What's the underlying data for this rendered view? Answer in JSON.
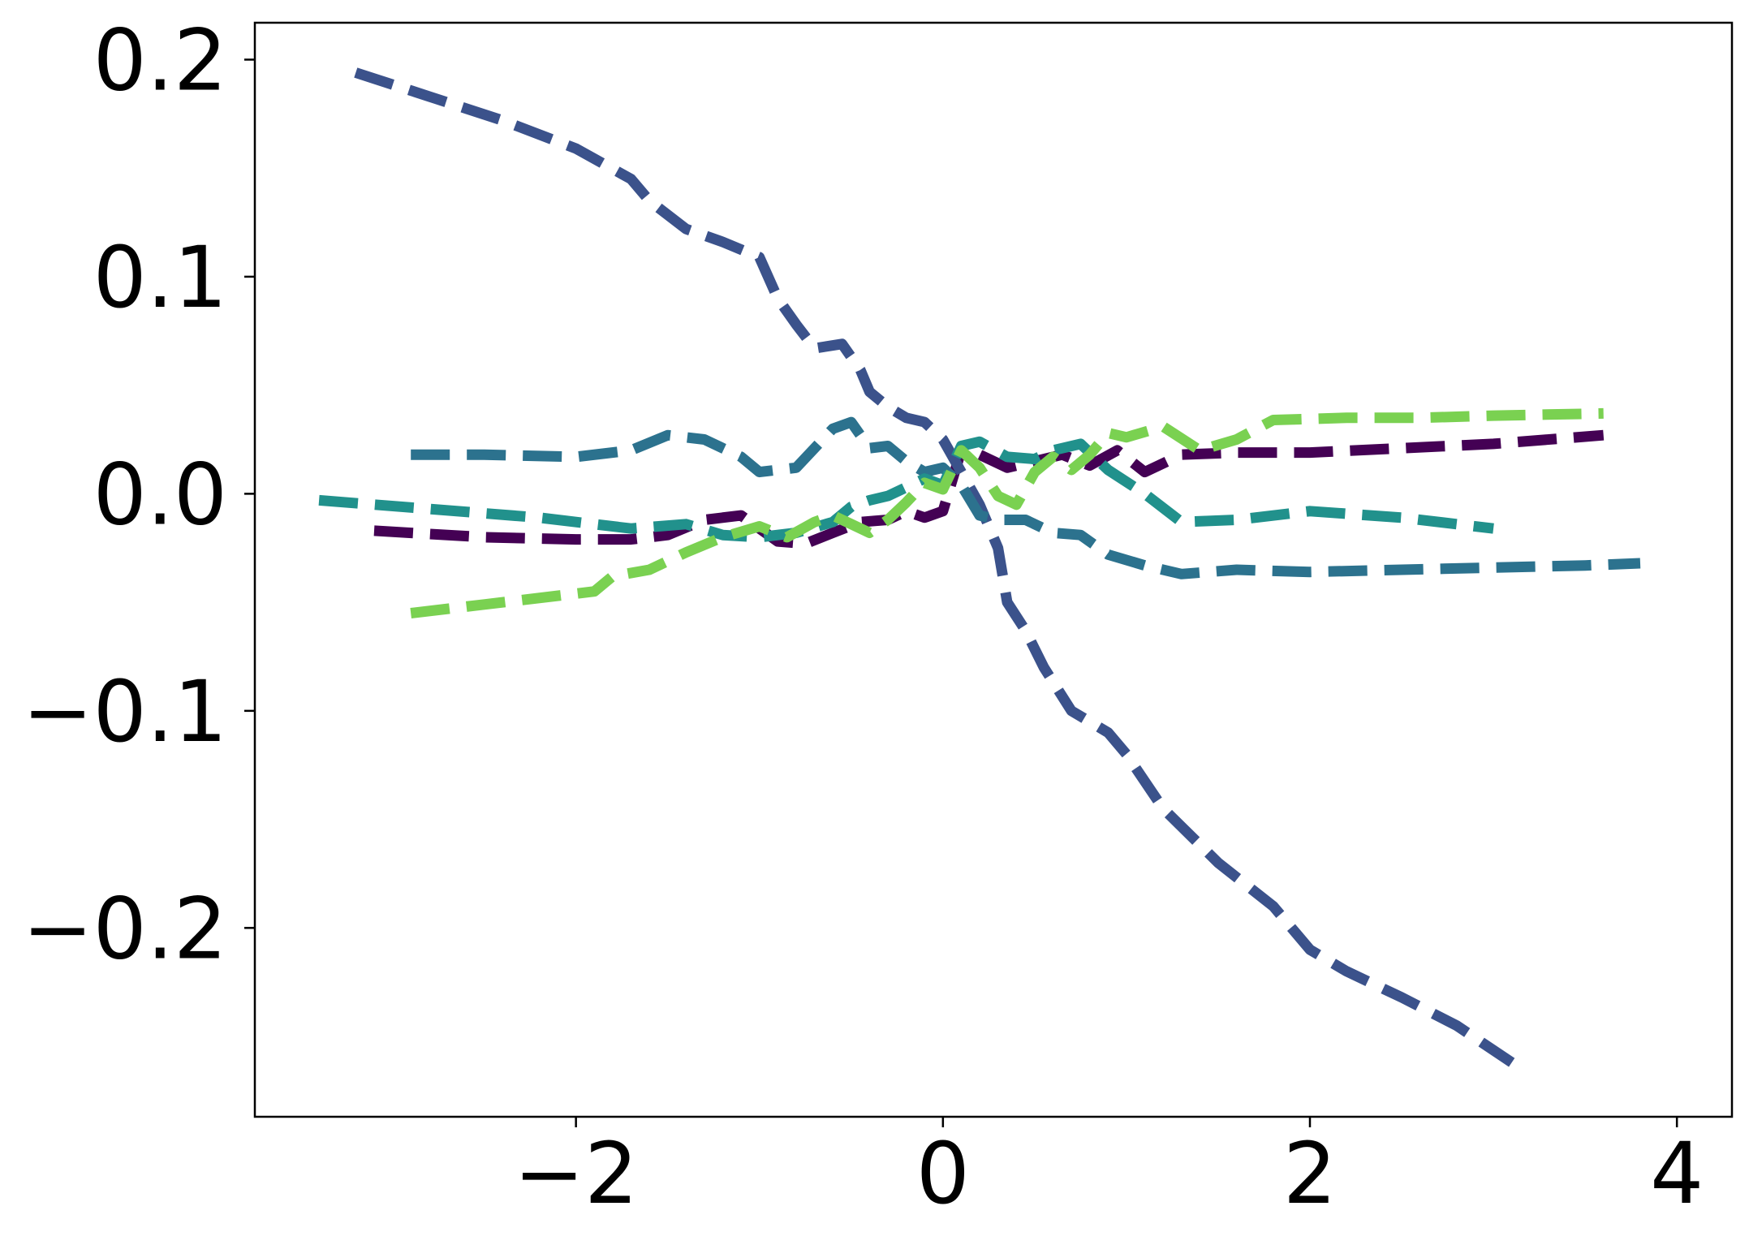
{
  "chart_data": {
    "type": "line",
    "title": "",
    "xlabel": "",
    "ylabel": "",
    "xlim": [
      -3.75,
      4.3
    ],
    "ylim": [
      -0.287,
      0.217
    ],
    "xticks": [
      -2,
      0,
      2,
      4
    ],
    "yticks": [
      0.2,
      0.1,
      0.0,
      -0.1,
      -0.2
    ],
    "xtick_labels": [
      "−2",
      "0",
      "2",
      "4"
    ],
    "ytick_labels": [
      "0.2",
      "0.1",
      "0.0",
      "−0.1",
      "−0.2"
    ],
    "grid": false,
    "line_style": "dashed",
    "series": [
      {
        "color": "#440154",
        "x": [
          -3.1,
          -2.5,
          -2.0,
          -1.7,
          -1.5,
          -1.3,
          -1.1,
          -0.9,
          -0.75,
          -0.6,
          -0.45,
          -0.3,
          -0.2,
          -0.1,
          0.0,
          0.1,
          0.2,
          0.35,
          0.5,
          0.65,
          0.8,
          0.95,
          1.1,
          1.3,
          1.6,
          2.0,
          2.5,
          3.0,
          3.6
        ],
        "y": [
          -0.017,
          -0.02,
          -0.021,
          -0.021,
          -0.019,
          -0.012,
          -0.01,
          -0.022,
          -0.023,
          -0.018,
          -0.013,
          -0.012,
          -0.008,
          -0.011,
          -0.008,
          0.02,
          0.018,
          0.012,
          0.015,
          0.018,
          0.013,
          0.02,
          0.01,
          0.018,
          0.019,
          0.019,
          0.021,
          0.023,
          0.027
        ]
      },
      {
        "color": "#3b528b",
        "x": [
          -3.2,
          -2.8,
          -2.4,
          -2.0,
          -1.7,
          -1.6,
          -1.4,
          -1.2,
          -1.0,
          -0.9,
          -0.8,
          -0.7,
          -0.55,
          -0.45,
          -0.4,
          -0.3,
          -0.2,
          -0.1,
          0.0,
          0.1,
          0.2,
          0.3,
          0.35,
          0.45,
          0.55,
          0.7,
          0.9,
          1.0,
          1.2,
          1.5,
          1.8,
          2.0,
          2.2,
          2.5,
          2.8,
          3.1
        ],
        "y": [
          0.194,
          0.183,
          0.172,
          0.159,
          0.145,
          0.135,
          0.122,
          0.116,
          0.109,
          0.09,
          0.078,
          0.067,
          0.069,
          0.057,
          0.047,
          0.04,
          0.035,
          0.033,
          0.025,
          0.01,
          -0.005,
          -0.025,
          -0.05,
          -0.063,
          -0.08,
          -0.1,
          -0.11,
          -0.12,
          -0.145,
          -0.17,
          -0.19,
          -0.21,
          -0.22,
          -0.232,
          -0.245,
          -0.262
        ]
      },
      {
        "color": "#2c728e",
        "x": [
          -2.9,
          -2.5,
          -2.0,
          -1.7,
          -1.5,
          -1.3,
          -1.1,
          -1.0,
          -0.8,
          -0.6,
          -0.5,
          -0.4,
          -0.3,
          -0.2,
          -0.1,
          0.0,
          0.1,
          0.2,
          0.3,
          0.45,
          0.6,
          0.75,
          0.9,
          1.1,
          1.3,
          1.6,
          2.0,
          2.5,
          3.0,
          3.5,
          3.8
        ],
        "y": [
          0.018,
          0.018,
          0.017,
          0.02,
          0.027,
          0.025,
          0.017,
          0.01,
          0.012,
          0.03,
          0.033,
          0.021,
          0.022,
          0.015,
          0.01,
          0.012,
          0.004,
          -0.01,
          -0.012,
          -0.012,
          -0.018,
          -0.019,
          -0.028,
          -0.033,
          -0.037,
          -0.035,
          -0.036,
          -0.035,
          -0.034,
          -0.033,
          -0.032
        ]
      },
      {
        "color": "#21918c",
        "x": [
          -3.4,
          -2.8,
          -2.2,
          -1.7,
          -1.4,
          -1.2,
          -1.0,
          -0.8,
          -0.6,
          -0.5,
          -0.4,
          -0.3,
          -0.2,
          -0.1,
          0.0,
          0.1,
          0.2,
          0.35,
          0.5,
          0.6,
          0.75,
          0.9,
          1.1,
          1.3,
          1.6,
          2.0,
          2.5,
          3.0
        ],
        "y": [
          -0.003,
          -0.007,
          -0.011,
          -0.016,
          -0.014,
          -0.019,
          -0.02,
          -0.018,
          -0.013,
          -0.006,
          -0.003,
          -0.001,
          0.003,
          0.007,
          0.004,
          0.022,
          0.024,
          0.017,
          0.016,
          0.02,
          0.023,
          0.011,
          0.0,
          -0.013,
          -0.012,
          -0.008,
          -0.011,
          -0.016
        ]
      },
      {
        "color": "#7ad151",
        "x": [
          -2.9,
          -2.5,
          -2.0,
          -1.9,
          -1.8,
          -1.6,
          -1.4,
          -1.2,
          -1.0,
          -0.85,
          -0.7,
          -0.6,
          -0.5,
          -0.4,
          -0.3,
          -0.2,
          -0.1,
          0.0,
          0.1,
          0.2,
          0.3,
          0.4,
          0.5,
          0.6,
          0.7,
          0.8,
          0.9,
          1.0,
          1.2,
          1.4,
          1.6,
          1.8,
          2.2,
          2.6,
          3.0,
          3.6
        ],
        "y": [
          -0.055,
          -0.051,
          -0.046,
          -0.045,
          -0.038,
          -0.035,
          -0.027,
          -0.02,
          -0.015,
          -0.02,
          -0.013,
          -0.01,
          -0.014,
          -0.018,
          -0.012,
          -0.004,
          0.005,
          0.002,
          0.02,
          0.012,
          -0.001,
          -0.005,
          0.01,
          0.017,
          0.011,
          0.018,
          0.028,
          0.026,
          0.031,
          0.02,
          0.025,
          0.034,
          0.035,
          0.035,
          0.036,
          0.037
        ]
      }
    ]
  }
}
